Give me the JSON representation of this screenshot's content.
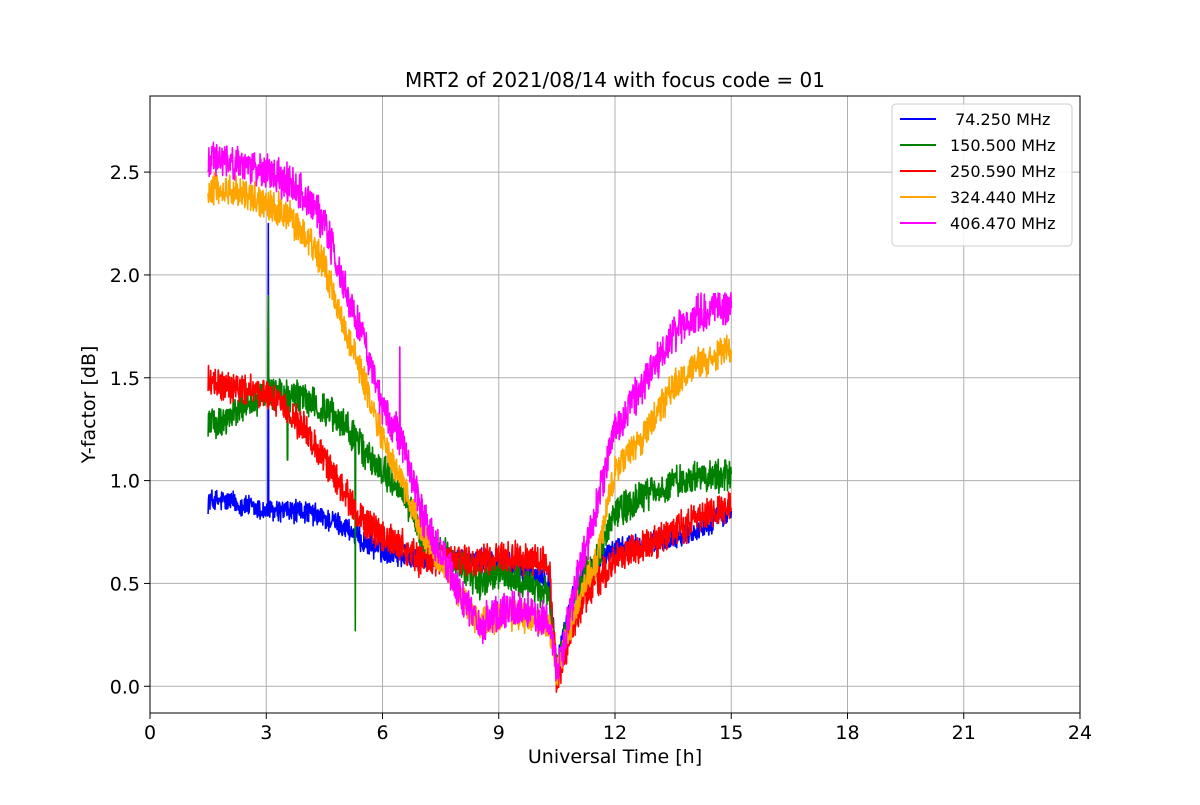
{
  "chart_data": {
    "type": "line",
    "title": "MRT2 of 2021/08/14 with focus code = 01",
    "xlabel": "Universal Time [h]",
    "ylabel": "Y-factor [dB]",
    "xlim": [
      0,
      24
    ],
    "ylim": [
      -0.13,
      2.87
    ],
    "xticks": [
      0,
      3,
      6,
      9,
      12,
      15,
      18,
      21,
      24
    ],
    "yticks": [
      0.0,
      0.5,
      1.0,
      1.5,
      2.0,
      2.5
    ],
    "xtick_labels": [
      "0",
      "3",
      "6",
      "9",
      "12",
      "15",
      "18",
      "21",
      "24"
    ],
    "ytick_labels": [
      "0.0",
      "0.5",
      "1.0",
      "1.5",
      "2.0",
      "2.5"
    ],
    "grid": true,
    "legend_position": "top-right",
    "series": [
      {
        "name": " 74.250 MHz",
        "color": "#0000ff",
        "noise": 0.05,
        "points": [
          [
            1.5,
            0.9
          ],
          [
            2.0,
            0.9
          ],
          [
            3.0,
            0.85
          ],
          [
            4.0,
            0.85
          ],
          [
            5.0,
            0.78
          ],
          [
            5.5,
            0.7
          ],
          [
            6.0,
            0.66
          ],
          [
            7.0,
            0.62
          ],
          [
            8.0,
            0.62
          ],
          [
            9.0,
            0.6
          ],
          [
            10.0,
            0.55
          ],
          [
            10.3,
            0.52
          ],
          [
            10.5,
            0.1
          ],
          [
            11.0,
            0.5
          ],
          [
            11.5,
            0.6
          ],
          [
            12.0,
            0.67
          ],
          [
            13.0,
            0.7
          ],
          [
            14.0,
            0.75
          ],
          [
            15.0,
            0.85
          ]
        ],
        "spikes": [
          [
            3.05,
            2.25
          ],
          [
            3.1,
            0.9
          ]
        ]
      },
      {
        "name": "150.500 MHz",
        "color": "#008000",
        "noise": 0.07,
        "points": [
          [
            1.5,
            1.28
          ],
          [
            2.0,
            1.3
          ],
          [
            2.5,
            1.38
          ],
          [
            3.0,
            1.42
          ],
          [
            4.0,
            1.4
          ],
          [
            5.0,
            1.28
          ],
          [
            5.5,
            1.15
          ],
          [
            6.0,
            1.05
          ],
          [
            6.5,
            0.95
          ],
          [
            7.0,
            0.72
          ],
          [
            7.5,
            0.65
          ],
          [
            8.0,
            0.6
          ],
          [
            8.5,
            0.5
          ],
          [
            9.0,
            0.55
          ],
          [
            9.5,
            0.52
          ],
          [
            10.0,
            0.48
          ],
          [
            10.3,
            0.45
          ],
          [
            10.5,
            0.08
          ],
          [
            11.0,
            0.5
          ],
          [
            11.5,
            0.6
          ],
          [
            12.0,
            0.85
          ],
          [
            13.0,
            0.95
          ],
          [
            14.0,
            1.02
          ],
          [
            15.0,
            1.02
          ]
        ],
        "spikes": [
          [
            3.05,
            1.9
          ],
          [
            5.3,
            0.27
          ],
          [
            3.55,
            1.1
          ]
        ]
      },
      {
        "name": "250.590 MHz",
        "color": "#ff0000",
        "noise": 0.07,
        "points": [
          [
            1.5,
            1.48
          ],
          [
            2.0,
            1.45
          ],
          [
            3.0,
            1.43
          ],
          [
            3.5,
            1.35
          ],
          [
            4.0,
            1.25
          ],
          [
            4.5,
            1.1
          ],
          [
            5.0,
            0.95
          ],
          [
            5.5,
            0.8
          ],
          [
            6.0,
            0.72
          ],
          [
            6.5,
            0.68
          ],
          [
            7.0,
            0.6
          ],
          [
            7.5,
            0.62
          ],
          [
            8.0,
            0.62
          ],
          [
            8.5,
            0.6
          ],
          [
            9.0,
            0.63
          ],
          [
            9.5,
            0.62
          ],
          [
            10.0,
            0.62
          ],
          [
            10.3,
            0.6
          ],
          [
            10.5,
            0.02
          ],
          [
            11.0,
            0.35
          ],
          [
            11.5,
            0.5
          ],
          [
            12.0,
            0.62
          ],
          [
            13.0,
            0.7
          ],
          [
            14.0,
            0.8
          ],
          [
            15.0,
            0.88
          ]
        ],
        "spikes": []
      },
      {
        "name": "324.440 MHz",
        "color": "#ffa500",
        "noise": 0.07,
        "points": [
          [
            1.5,
            2.42
          ],
          [
            2.0,
            2.42
          ],
          [
            3.0,
            2.35
          ],
          [
            3.5,
            2.3
          ],
          [
            4.0,
            2.2
          ],
          [
            4.5,
            2.05
          ],
          [
            5.0,
            1.75
          ],
          [
            5.5,
            1.5
          ],
          [
            6.0,
            1.2
          ],
          [
            6.5,
            1.0
          ],
          [
            7.0,
            0.75
          ],
          [
            7.5,
            0.6
          ],
          [
            8.0,
            0.45
          ],
          [
            8.5,
            0.3
          ],
          [
            9.0,
            0.35
          ],
          [
            9.5,
            0.35
          ],
          [
            10.0,
            0.32
          ],
          [
            10.3,
            0.3
          ],
          [
            10.5,
            0.05
          ],
          [
            11.0,
            0.4
          ],
          [
            11.5,
            0.6
          ],
          [
            12.0,
            1.05
          ],
          [
            12.5,
            1.15
          ],
          [
            13.0,
            1.3
          ],
          [
            13.5,
            1.45
          ],
          [
            14.0,
            1.55
          ],
          [
            15.0,
            1.65
          ]
        ],
        "spikes": []
      },
      {
        "name": "406.470 MHz",
        "color": "#ff00ff",
        "noise": 0.08,
        "points": [
          [
            1.5,
            2.55
          ],
          [
            2.0,
            2.55
          ],
          [
            3.0,
            2.5
          ],
          [
            3.5,
            2.45
          ],
          [
            4.0,
            2.38
          ],
          [
            4.5,
            2.25
          ],
          [
            5.0,
            1.95
          ],
          [
            5.5,
            1.7
          ],
          [
            6.0,
            1.35
          ],
          [
            6.5,
            1.2
          ],
          [
            7.0,
            0.85
          ],
          [
            7.5,
            0.65
          ],
          [
            8.0,
            0.45
          ],
          [
            8.5,
            0.3
          ],
          [
            9.0,
            0.35
          ],
          [
            9.5,
            0.38
          ],
          [
            10.0,
            0.33
          ],
          [
            10.3,
            0.3
          ],
          [
            10.5,
            0.05
          ],
          [
            11.0,
            0.5
          ],
          [
            11.5,
            0.85
          ],
          [
            12.0,
            1.25
          ],
          [
            12.5,
            1.4
          ],
          [
            13.0,
            1.55
          ],
          [
            13.5,
            1.7
          ],
          [
            14.0,
            1.8
          ],
          [
            15.0,
            1.85
          ]
        ],
        "spikes": [
          [
            6.45,
            1.65
          ]
        ]
      }
    ]
  }
}
